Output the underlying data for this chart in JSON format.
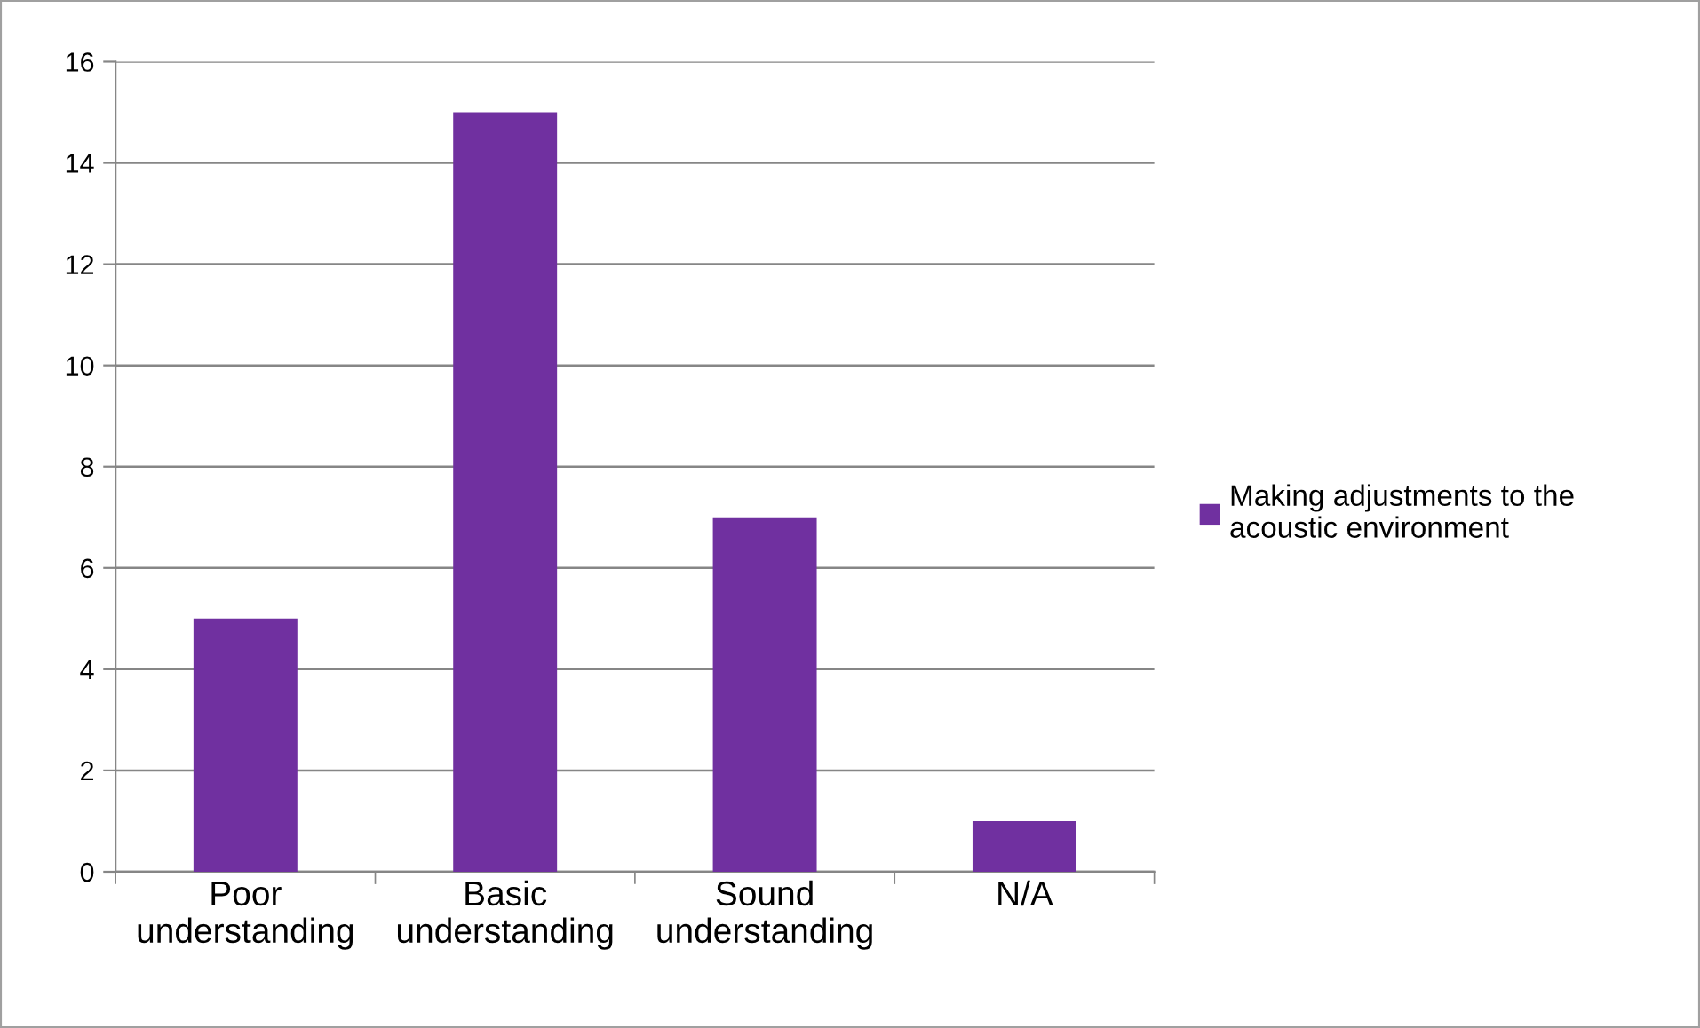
{
  "chart_data": {
    "type": "bar",
    "categories": [
      "Poor understanding",
      "Basic understanding",
      "Sound understanding",
      "N/A"
    ],
    "series": [
      {
        "name": "Making adjustments to the acoustic environment",
        "color": "#7030a0",
        "values": [
          5,
          15,
          7,
          1
        ]
      }
    ],
    "ylim": [
      0,
      16
    ],
    "yticks": [
      0,
      2,
      4,
      6,
      8,
      10,
      12,
      14,
      16
    ],
    "grid": "y",
    "legend": "right"
  }
}
